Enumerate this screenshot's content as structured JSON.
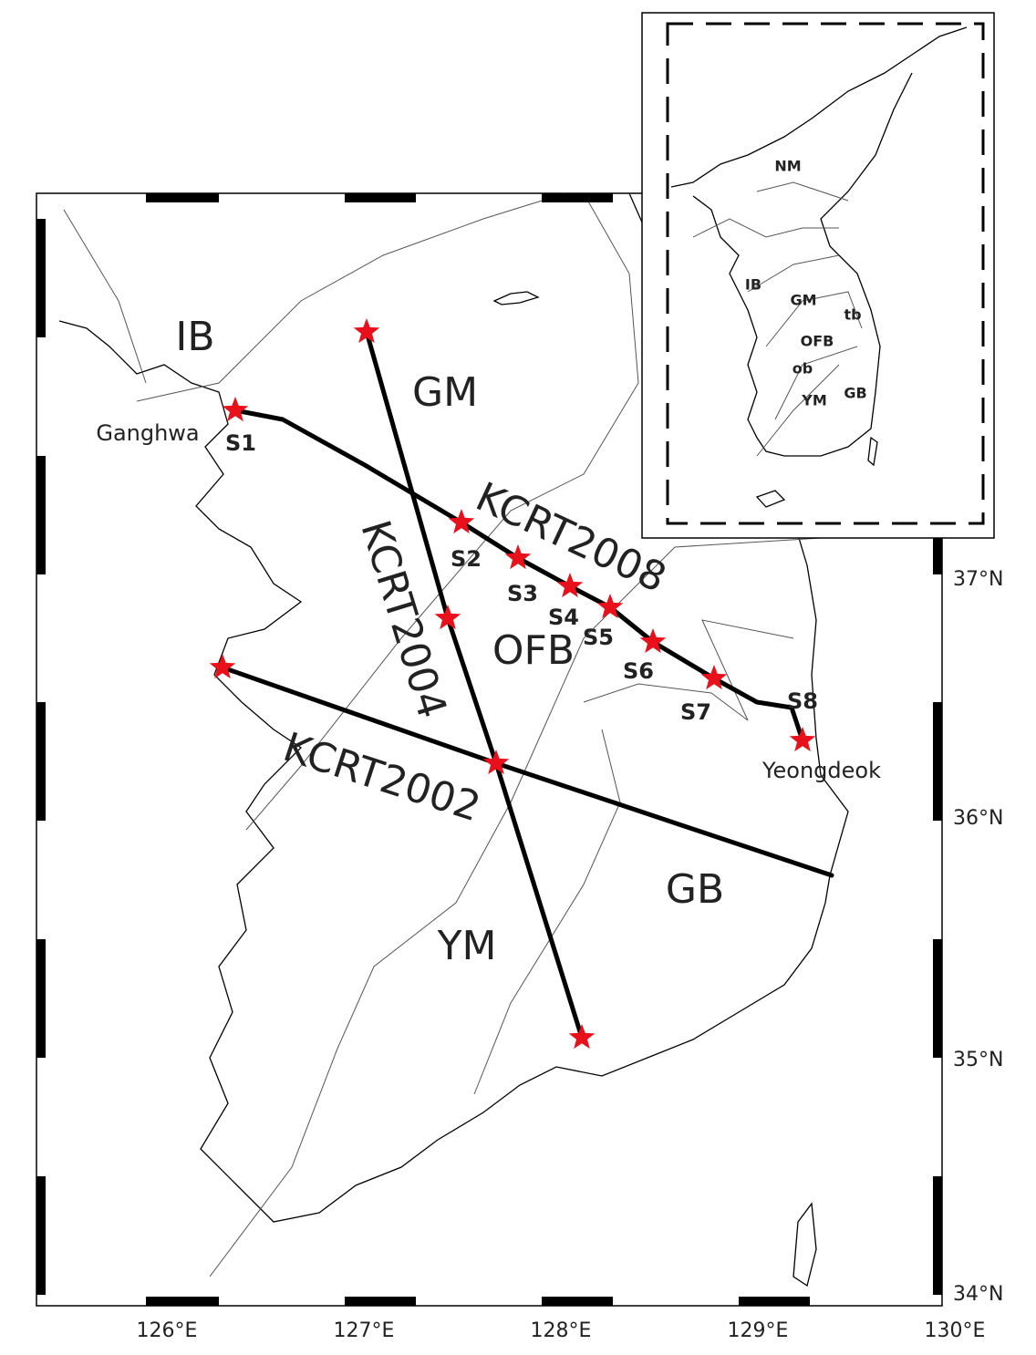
{
  "map": {
    "regions": [
      "IB",
      "GM",
      "OFB",
      "YM",
      "GB"
    ],
    "profiles": [
      "KCRT2008",
      "KCRT2004",
      "KCRT2002"
    ],
    "stations": [
      "S1",
      "S2",
      "S3",
      "S4",
      "S5",
      "S6",
      "S7",
      "S8"
    ],
    "places": [
      "Ganghwa",
      "Yeongdeok"
    ],
    "x_labels": [
      "126°E",
      "127°E",
      "128°E",
      "129°E",
      "130°E"
    ],
    "y_labels": [
      "37°N",
      "36°N",
      "35°N",
      "34°N"
    ],
    "inset": {
      "labels": [
        "NM",
        "IB",
        "GM",
        "tb",
        "OFB",
        "ob",
        "YM",
        "GB"
      ]
    }
  }
}
